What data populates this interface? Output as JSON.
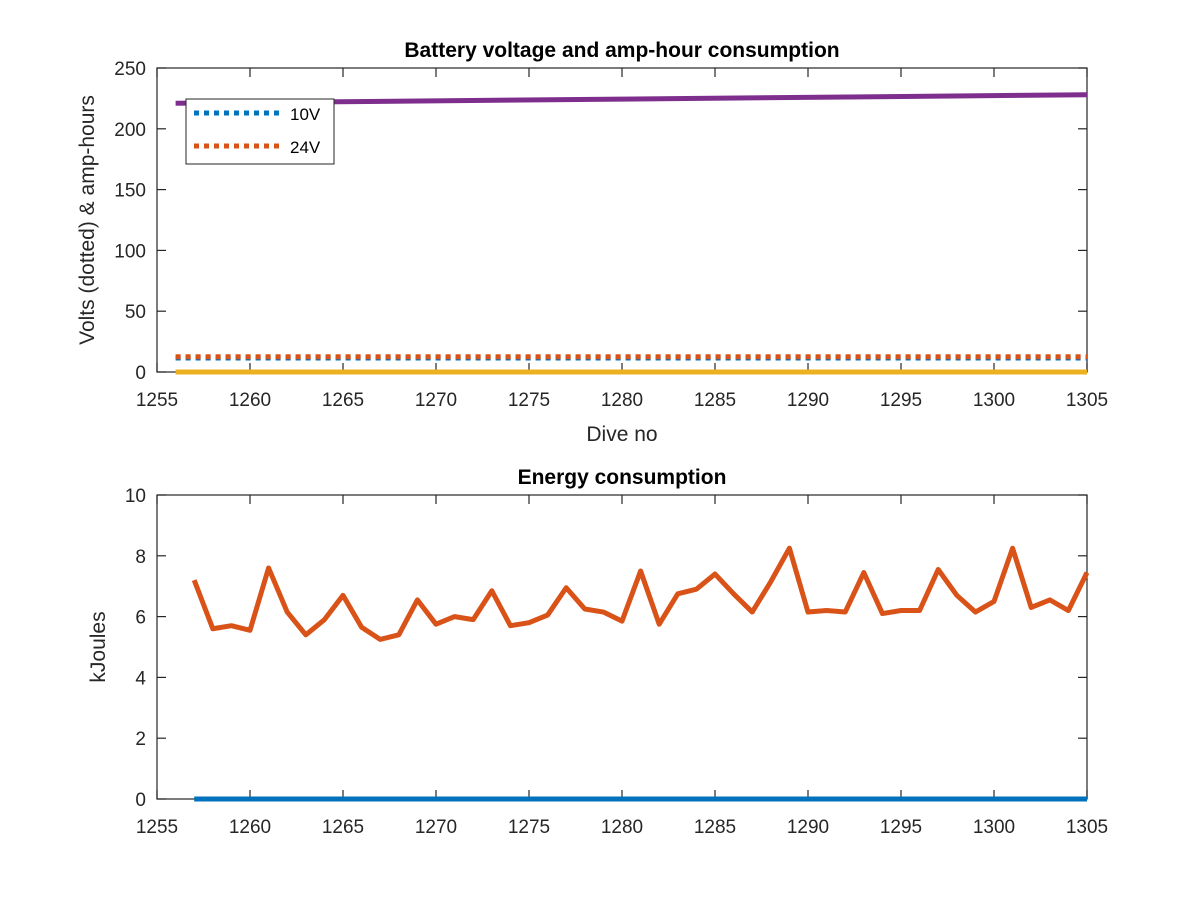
{
  "chart_data": [
    {
      "type": "line",
      "title": "Battery voltage and amp-hour consumption",
      "xlabel": "Dive no",
      "ylabel": "Volts (dotted) & amp-hours",
      "xlim": [
        1255,
        1305
      ],
      "ylim": [
        0,
        250
      ],
      "xticks": [
        "1255",
        "1260",
        "1265",
        "1270",
        "1275",
        "1280",
        "1285",
        "1290",
        "1295",
        "1300",
        "1305"
      ],
      "yticks": [
        "0",
        "50",
        "100",
        "150",
        "200",
        "250"
      ],
      "legend_placement": "top-left",
      "grid": false,
      "series": [
        {
          "name": "10V",
          "style": "dotted",
          "color": "#0072BD",
          "x": [
            1256,
            1305
          ],
          "y": [
            11.5,
            11.5
          ]
        },
        {
          "name": "24V",
          "style": "dotted",
          "color": "#D95319",
          "x": [
            1256,
            1305
          ],
          "y": [
            12.5,
            12.5
          ]
        },
        {
          "style": "solid",
          "color": "#7E2F8E",
          "x": [
            1256,
            1305
          ],
          "y": [
            221,
            228
          ]
        },
        {
          "style": "solid",
          "color": "#EDB120",
          "x": [
            1256,
            1305
          ],
          "y": [
            0,
            0
          ]
        }
      ]
    },
    {
      "type": "line",
      "title": "Energy consumption",
      "xlabel": "",
      "ylabel": "kJoules",
      "xlim": [
        1255,
        1305
      ],
      "ylim": [
        0,
        10
      ],
      "xticks": [
        "1255",
        "1260",
        "1265",
        "1270",
        "1275",
        "1280",
        "1285",
        "1290",
        "1295",
        "1300",
        "1305"
      ],
      "yticks": [
        "0",
        "2",
        "4",
        "6",
        "8",
        "10"
      ],
      "grid": false,
      "series": [
        {
          "style": "solid",
          "color": "#0072BD",
          "x": [
            1257,
            1305
          ],
          "y": [
            0,
            0
          ]
        },
        {
          "style": "solid",
          "color": "#D95319",
          "x": [
            1257,
            1258,
            1259,
            1260,
            1261,
            1262,
            1263,
            1264,
            1265,
            1266,
            1267,
            1268,
            1269,
            1270,
            1271,
            1272,
            1273,
            1274,
            1275,
            1276,
            1277,
            1278,
            1279,
            1280,
            1281,
            1282,
            1283,
            1284,
            1285,
            1286,
            1287,
            1288,
            1289,
            1290,
            1291,
            1292,
            1293,
            1294,
            1295,
            1296,
            1297,
            1298,
            1299,
            1300,
            1301,
            1302,
            1303,
            1304,
            1305
          ],
          "y": [
            7.2,
            5.6,
            5.7,
            5.55,
            7.6,
            6.15,
            5.4,
            5.9,
            6.7,
            5.65,
            5.25,
            5.4,
            6.55,
            5.75,
            6.0,
            5.9,
            6.85,
            5.7,
            5.8,
            6.05,
            6.95,
            6.25,
            6.15,
            5.85,
            7.5,
            5.75,
            6.75,
            6.9,
            7.4,
            6.75,
            6.15,
            7.15,
            8.25,
            6.15,
            6.2,
            6.15,
            7.45,
            6.1,
            6.2,
            6.2,
            7.55,
            6.7,
            6.15,
            6.5,
            8.25,
            6.3,
            6.55,
            6.2,
            7.45
          ]
        }
      ]
    }
  ]
}
